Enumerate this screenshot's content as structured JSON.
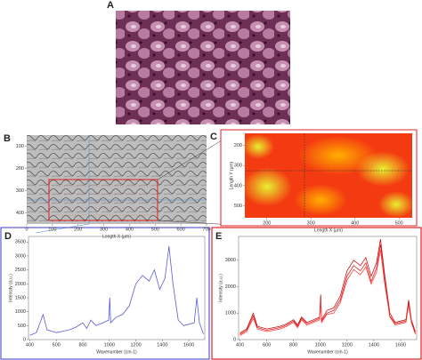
{
  "panel_labels": [
    "A",
    "B",
    "C",
    "D",
    "E"
  ],
  "chart_data": [
    {
      "type": "image",
      "xlabel": "Length X (µm)",
      "xlim": [
        0,
        700
      ],
      "xticks": [
        0,
        100,
        200,
        300,
        400,
        500,
        600,
        700
      ],
      "ylim": [
        50,
        450
      ],
      "yticks": [
        100,
        200,
        300,
        400
      ],
      "y_inverted": true
    },
    {
      "type": "heatmap",
      "xlabel": "Length X (µm)",
      "ylabel": "Length Y (µm)",
      "xlim": [
        150,
        530
      ],
      "xticks": [
        200,
        300,
        400,
        500
      ],
      "ylim": [
        140,
        560
      ],
      "yticks": [
        200,
        300,
        400,
        500
      ],
      "y_inverted": true
    },
    {
      "type": "line",
      "xlabel": "Wavenumber (cm-1)",
      "ylabel": "Intensity (a.u.)",
      "xlim": [
        390,
        1720
      ],
      "xticks": [
        400,
        600,
        800,
        1000,
        1200,
        1400,
        1600
      ],
      "ylim": [
        0,
        3700
      ],
      "yticks": [
        0,
        500,
        1000,
        1500,
        2000,
        2500,
        3000,
        3500
      ],
      "x": [
        400,
        450,
        500,
        530,
        600,
        650,
        700,
        750,
        800,
        830,
        860,
        900,
        950,
        995,
        1003,
        1010,
        1050,
        1100,
        1150,
        1200,
        1250,
        1300,
        1340,
        1380,
        1420,
        1450,
        1480,
        1520,
        1560,
        1600,
        1640,
        1660,
        1680,
        1710
      ],
      "series": [
        {
          "color": "#5b5bd6",
          "values": [
            150,
            250,
            900,
            350,
            250,
            300,
            350,
            450,
            600,
            400,
            700,
            500,
            600,
            700,
            1500,
            600,
            800,
            900,
            1200,
            2000,
            2300,
            2100,
            2500,
            1800,
            2200,
            3350,
            2000,
            700,
            500,
            550,
            600,
            1500,
            600,
            200
          ]
        }
      ]
    },
    {
      "type": "line",
      "xlabel": "Wavenumber (cm-1)",
      "ylabel": "Intensity (a.u.)",
      "xlim": [
        390,
        1720
      ],
      "xticks": [
        400,
        600,
        800,
        1000,
        1200,
        1400,
        1600
      ],
      "ylim": [
        0,
        3900
      ],
      "yticks": [
        0,
        1000,
        2000,
        3000
      ],
      "x": [
        400,
        450,
        500,
        530,
        600,
        650,
        700,
        750,
        800,
        830,
        860,
        900,
        950,
        995,
        1003,
        1010,
        1050,
        1100,
        1150,
        1200,
        1250,
        1300,
        1340,
        1380,
        1420,
        1450,
        1480,
        1520,
        1560,
        1600,
        1640,
        1660,
        1680,
        1710
      ],
      "series": [
        {
          "color": "#e02020",
          "values": [
            200,
            350,
            900,
            450,
            350,
            400,
            450,
            550,
            700,
            500,
            800,
            600,
            700,
            800,
            1600,
            700,
            1000,
            1100,
            1500,
            2400,
            2800,
            2600,
            2900,
            2200,
            2700,
            3600,
            2300,
            900,
            600,
            650,
            700,
            1400,
            700,
            250
          ]
        },
        {
          "color": "#c01818",
          "values": [
            250,
            400,
            1000,
            500,
            400,
            450,
            500,
            600,
            750,
            550,
            850,
            650,
            750,
            850,
            1700,
            750,
            1100,
            1200,
            1650,
            2600,
            3000,
            2800,
            3100,
            2400,
            2900,
            3800,
            2500,
            1000,
            650,
            700,
            750,
            1500,
            750,
            300
          ]
        },
        {
          "color": "#ff4040",
          "values": [
            150,
            300,
            800,
            400,
            300,
            350,
            400,
            500,
            650,
            450,
            750,
            550,
            650,
            750,
            1500,
            650,
            950,
            1000,
            1400,
            2250,
            2650,
            2450,
            2750,
            2100,
            2550,
            3400,
            2150,
            850,
            550,
            600,
            650,
            1300,
            650,
            200
          ]
        }
      ]
    }
  ]
}
